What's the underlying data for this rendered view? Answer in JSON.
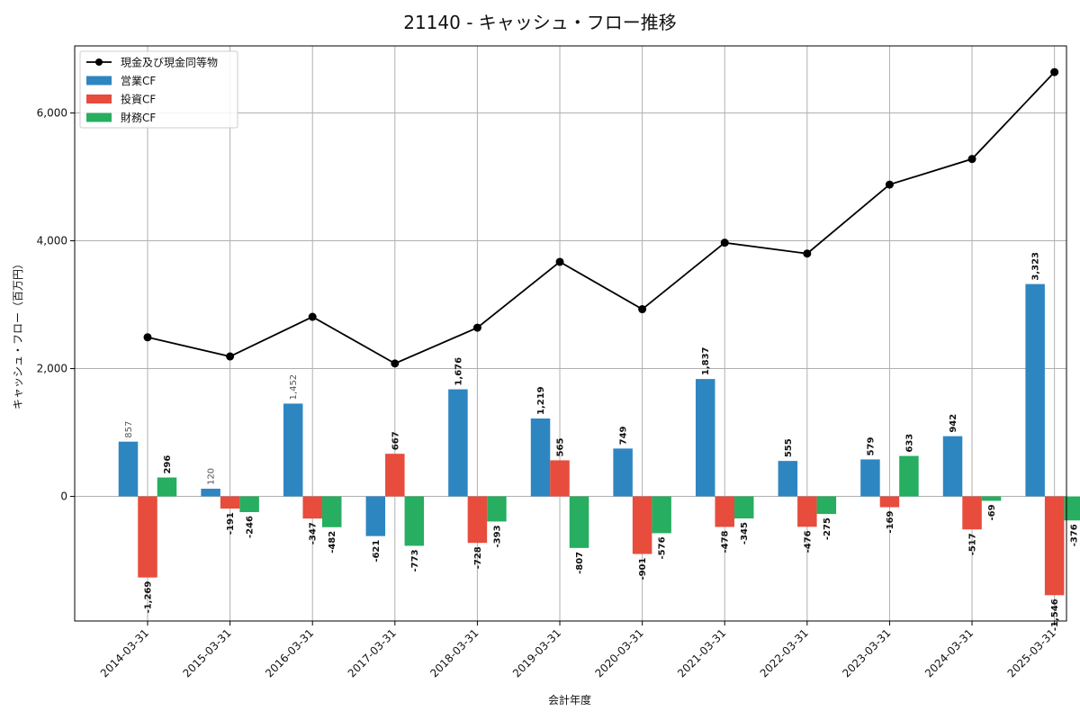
{
  "chart_data": {
    "type": "bar",
    "title": "21140 - キャッシュ・フロー推移",
    "xlabel": "会計年度",
    "ylabel": "キャッシュ・フロー（百万円）",
    "ylim": [
      -1950,
      7050
    ],
    "yticks": [
      0,
      2000,
      4000,
      6000
    ],
    "ytick_labels": [
      "0",
      "2,000",
      "4,000",
      "6,000"
    ],
    "grid": true,
    "legend_position": "top-left",
    "categories": [
      "2014-03-31",
      "2015-03-31",
      "2016-03-31",
      "2017-03-31",
      "2018-03-31",
      "2019-03-31",
      "2020-03-31",
      "2021-03-31",
      "2022-03-31",
      "2023-03-31",
      "2024-03-31",
      "2025-03-31"
    ],
    "series": [
      {
        "name": "営業CF",
        "kind": "bar",
        "color": "#2e86c1",
        "values": [
          857,
          120,
          1452,
          -621,
          1676,
          1219,
          749,
          1837,
          555,
          579,
          942,
          3323
        ],
        "labels": [
          "857",
          "120",
          "1,452",
          "-621",
          "1,676",
          "1,219",
          "749",
          "1,837",
          "555",
          "579",
          "942",
          "3,323"
        ]
      },
      {
        "name": "投資CF",
        "kind": "bar",
        "color": "#e74c3c",
        "values": [
          -1269,
          -191,
          -347,
          667,
          -728,
          565,
          -901,
          -478,
          -476,
          -169,
          -517,
          -1546
        ],
        "labels": [
          "-1,269",
          "-191",
          "-347",
          "667",
          "-728",
          "565",
          "-901",
          "-478",
          "-476",
          "-169",
          "-517",
          "-1,546"
        ]
      },
      {
        "name": "財務CF",
        "kind": "bar",
        "color": "#27ae60",
        "values": [
          296,
          -246,
          -482,
          -773,
          -393,
          -807,
          -576,
          -345,
          -275,
          633,
          -69,
          -376
        ],
        "labels": [
          "296",
          "-246",
          "-482",
          "-773",
          "-393",
          "-807",
          "-576",
          "-345",
          "-275",
          "633",
          "-69",
          "-376"
        ]
      },
      {
        "name": "現金及び現金同等物",
        "kind": "line",
        "color": "#000000",
        "values": [
          2490,
          2190,
          2810,
          2080,
          2640,
          3670,
          2930,
          3970,
          3800,
          4880,
          5280,
          6640
        ]
      }
    ],
    "legend": [
      {
        "name": "現金及び現金同等物",
        "kind": "line",
        "color": "#000000"
      },
      {
        "name": "営業CF",
        "kind": "bar",
        "color": "#2e86c1"
      },
      {
        "name": "投資CF",
        "kind": "bar",
        "color": "#e74c3c"
      },
      {
        "name": "財務CF",
        "kind": "bar",
        "color": "#27ae60"
      }
    ]
  }
}
